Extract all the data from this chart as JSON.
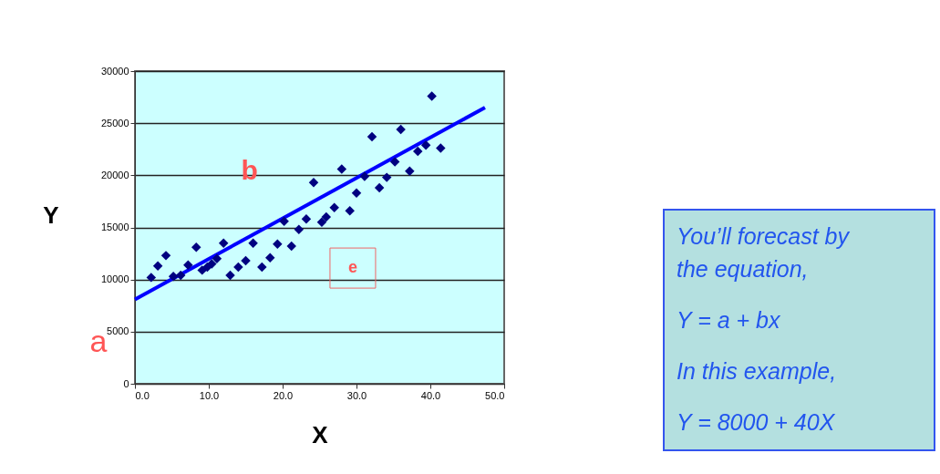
{
  "chart_data": {
    "type": "scatter",
    "xlabel": "X",
    "ylabel": "Y",
    "xlim": [
      0,
      50
    ],
    "ylim": [
      0,
      30000
    ],
    "xticks": [
      {
        "value": 0,
        "label": "0.0"
      },
      {
        "value": 10,
        "label": "10.0"
      },
      {
        "value": 20,
        "label": "20.0"
      },
      {
        "value": 30,
        "label": "30.0"
      },
      {
        "value": 40,
        "label": "40.0"
      },
      {
        "value": 50,
        "label": "50.0"
      }
    ],
    "yticks": [
      0,
      5000,
      10000,
      15000,
      20000,
      25000,
      30000
    ],
    "grid": "y",
    "series": [
      {
        "type": "scatter",
        "color": "#000080",
        "marker": "diamond",
        "x": [
          2.2,
          3.1,
          4.2,
          5.2,
          6.2,
          7.2,
          8.3,
          9.1,
          9.8,
          10.4,
          11.1,
          12.0,
          12.9,
          14.0,
          15.0,
          16.0,
          17.2,
          18.3,
          19.3,
          20.2,
          21.2,
          22.2,
          23.2,
          24.2,
          25.3,
          25.9,
          27.0,
          28.0,
          29.1,
          30.0,
          31.1,
          32.1,
          33.1,
          34.1,
          35.2,
          36.0,
          37.2,
          38.3,
          39.4,
          40.2,
          41.4
        ],
        "values": [
          10200,
          11300,
          12300,
          10300,
          10400,
          11400,
          13100,
          10900,
          11200,
          11500,
          12000,
          13500,
          10400,
          11200,
          11800,
          13500,
          11200,
          12100,
          13400,
          15600,
          13200,
          14800,
          15800,
          19300,
          15500,
          16000,
          16900,
          20600,
          16600,
          18300,
          19900,
          23700,
          18800,
          19800,
          21300,
          24400,
          20400,
          22300,
          22900,
          27600,
          22600
        ]
      },
      {
        "type": "line",
        "color": "#0000ff",
        "line_style": "solid",
        "x": [
          0,
          47.4
        ],
        "values": [
          8100,
          26500
        ]
      }
    ],
    "annotations": [
      "b",
      "e",
      "a",
      "You’ll forecast by",
      "the equation,",
      "Y = a + bx",
      "In this example,",
      "Y = 8000 + 40X"
    ]
  }
}
